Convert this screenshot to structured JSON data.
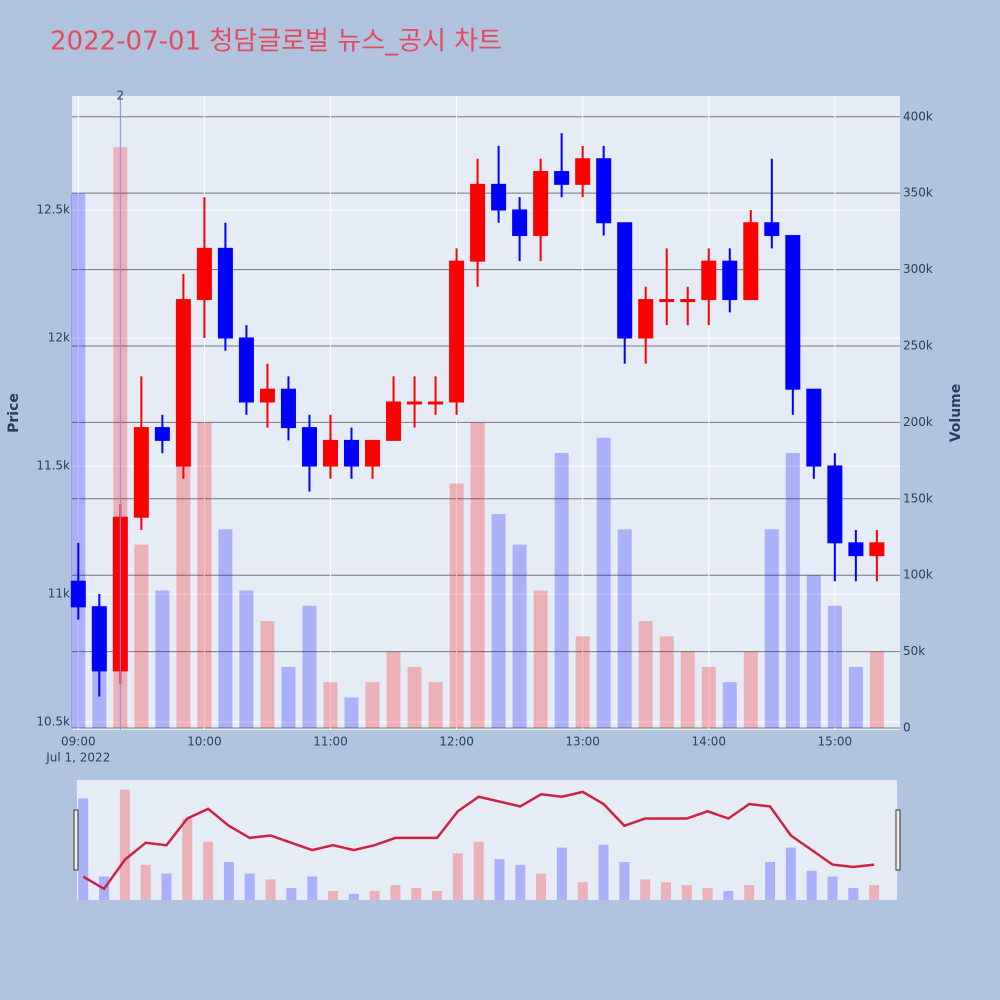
{
  "chart_data": {
    "type": "candlestick",
    "title": "2022-07-01 청담글로벌 뉴스_공시 차트",
    "y_label": "Price",
    "y2_label": "Volume",
    "annotation": {
      "x": "2022-07-01 09:20",
      "text": "2"
    },
    "x": [
      "2022-07-01 09:00",
      "2022-07-01 09:10",
      "2022-07-01 09:20",
      "2022-07-01 09:30",
      "2022-07-01 09:40",
      "2022-07-01 09:50",
      "2022-07-01 10:00",
      "2022-07-01 10:10",
      "2022-07-01 10:20",
      "2022-07-01 10:30",
      "2022-07-01 10:40",
      "2022-07-01 10:50",
      "2022-07-01 11:00",
      "2022-07-01 11:10",
      "2022-07-01 11:20",
      "2022-07-01 11:30",
      "2022-07-01 11:40",
      "2022-07-01 11:50",
      "2022-07-01 12:00",
      "2022-07-01 12:10",
      "2022-07-01 12:20",
      "2022-07-01 12:30",
      "2022-07-01 12:40",
      "2022-07-01 12:50",
      "2022-07-01 13:00",
      "2022-07-01 13:10",
      "2022-07-01 13:20",
      "2022-07-01 13:30",
      "2022-07-01 13:40",
      "2022-07-01 13:50",
      "2022-07-01 14:00",
      "2022-07-01 14:10",
      "2022-07-01 14:20",
      "2022-07-01 14:30",
      "2022-07-01 14:40",
      "2022-07-01 14:50",
      "2022-07-01 15:00",
      "2022-07-01 15:10",
      "2022-07-01 15:20"
    ],
    "open": [
      11050,
      10950,
      10700,
      11300,
      11650,
      11500,
      12150,
      12350,
      12000,
      11750,
      11800,
      11650,
      11500,
      11600,
      11500,
      11600,
      11750,
      11750,
      11750,
      12300,
      12600,
      12500,
      12400,
      12650,
      12600,
      12700,
      12450,
      12000,
      12150,
      12150,
      12150,
      12300,
      12150,
      12450,
      12400,
      11800,
      11500,
      11200,
      11150
    ],
    "high": [
      11200,
      11000,
      11350,
      11850,
      11700,
      12250,
      12550,
      12450,
      12050,
      11900,
      11850,
      11700,
      11700,
      11650,
      11600,
      11850,
      11850,
      11850,
      12350,
      12700,
      12750,
      12550,
      12700,
      12800,
      12750,
      12750,
      12450,
      12200,
      12350,
      12200,
      12350,
      12350,
      12500,
      12700,
      12400,
      11800,
      11550,
      11250,
      11250
    ],
    "low": [
      10900,
      10600,
      10650,
      11250,
      11550,
      11450,
      12000,
      11950,
      11700,
      11650,
      11600,
      11400,
      11450,
      11450,
      11450,
      11600,
      11650,
      11700,
      11700,
      12200,
      12450,
      12300,
      12300,
      12550,
      12550,
      12400,
      11900,
      11900,
      12050,
      12050,
      12050,
      12100,
      12150,
      12350,
      11700,
      11450,
      11050,
      11050,
      11050
    ],
    "close": [
      10950,
      10700,
      11300,
      11650,
      11600,
      12150,
      12350,
      12000,
      11750,
      11800,
      11650,
      11500,
      11600,
      11500,
      11600,
      11750,
      11750,
      11750,
      12300,
      12600,
      12500,
      12400,
      12650,
      12600,
      12700,
      12450,
      12000,
      12150,
      12150,
      12150,
      12300,
      12150,
      12450,
      12400,
      11800,
      11500,
      11200,
      11150,
      11200
    ],
    "volume": [
      350000,
      80000,
      380000,
      120000,
      90000,
      280000,
      200000,
      130000,
      90000,
      70000,
      40000,
      80000,
      30000,
      20000,
      30000,
      50000,
      40000,
      30000,
      160000,
      200000,
      140000,
      120000,
      90000,
      180000,
      60000,
      190000,
      130000,
      70000,
      60000,
      50000,
      40000,
      30000,
      50000,
      130000,
      180000,
      100000,
      80000,
      40000,
      50000
    ],
    "increasing_color": "#ff0000",
    "decreasing_color": "#0000ff",
    "xlim": [
      "2022-07-01 08:57",
      "2022-07-01 15:31"
    ],
    "xticks": [
      {
        "value": "2022-07-01 09:00",
        "label": "09:00"
      },
      {
        "value": "2022-07-01 10:00",
        "label": "10:00"
      },
      {
        "value": "2022-07-01 11:00",
        "label": "11:00"
      },
      {
        "value": "2022-07-01 12:00",
        "label": "12:00"
      },
      {
        "value": "2022-07-01 13:00",
        "label": "13:00"
      },
      {
        "value": "2022-07-01 14:00",
        "label": "14:00"
      },
      {
        "value": "2022-07-01 15:00",
        "label": "15:00"
      }
    ],
    "x_sublabel": "Jul 1, 2022",
    "ylim": [
      10469,
      12945
    ],
    "yticks": [
      {
        "value": 10500,
        "label": "10.5k"
      },
      {
        "value": 11000,
        "label": "11k"
      },
      {
        "value": 11500,
        "label": "11.5k"
      },
      {
        "value": 12000,
        "label": "12k"
      },
      {
        "value": 12500,
        "label": "12.5k"
      }
    ],
    "y2lim": [
      -1300,
      413600
    ],
    "y2ticks": [
      0,
      {
        "value": 50000,
        "label": "50k"
      },
      {
        "value": 100000,
        "label": "100k"
      },
      {
        "value": 150000,
        "label": "150k"
      },
      {
        "value": 200000,
        "label": "200k"
      },
      {
        "value": 250000,
        "label": "250k"
      },
      {
        "value": 300000,
        "label": "300k"
      },
      {
        "value": 350000,
        "label": "350k"
      },
      {
        "value": 400000,
        "label": "400k"
      }
    ],
    "grid": true,
    "rangeslider": true
  }
}
